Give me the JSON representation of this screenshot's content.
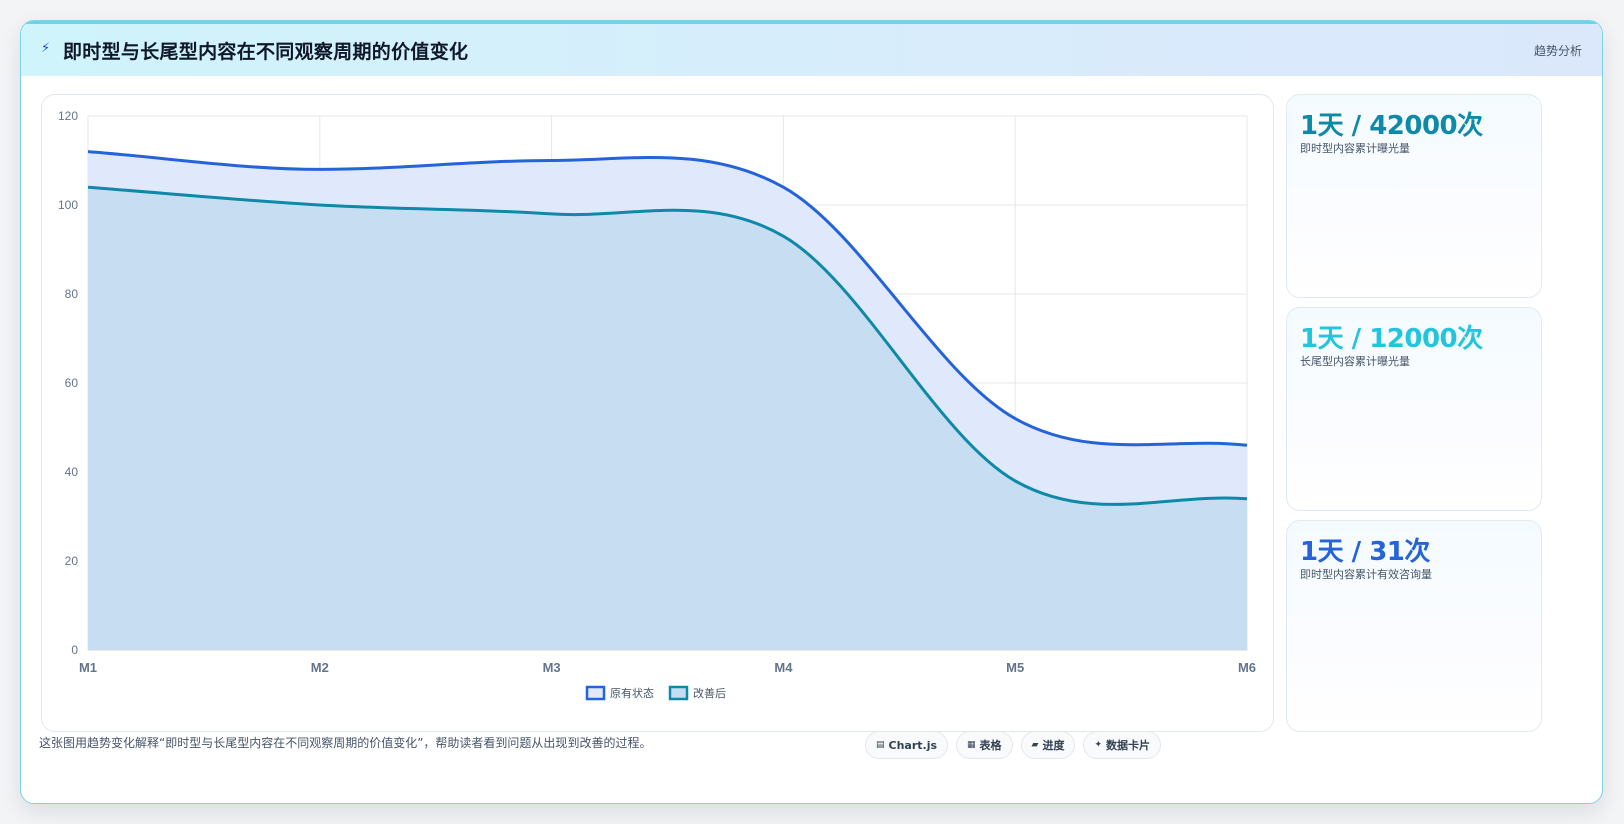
{
  "header": {
    "icon": "lightning-icon",
    "title": "即时型与长尾型内容在不同观察周期的价值变化",
    "tag": "趋势分析"
  },
  "chart_data": {
    "type": "area",
    "categories": [
      "M1",
      "M2",
      "M3",
      "M4",
      "M5",
      "M6"
    ],
    "ylim": [
      0,
      120
    ],
    "yticks": [
      "0",
      "20",
      "40",
      "60",
      "80",
      "100",
      "120"
    ],
    "grid": true,
    "legend_position": "bottom",
    "series": [
      {
        "name": "原有状态",
        "values": [
          112,
          108,
          110,
          104,
          52,
          46
        ],
        "color": "#2563d9",
        "fill": "#e0e9fb"
      },
      {
        "name": "改善后",
        "values": [
          104,
          100,
          98,
          93,
          38,
          34
        ],
        "color": "#0e89a8",
        "fill": "#c5dcf1"
      }
    ]
  },
  "stats": [
    {
      "value": "1天 / 42000次",
      "label": "即时型内容累计曝光量",
      "color": "#0e89a8"
    },
    {
      "value": "1天 / 12000次",
      "label": "长尾型内容累计曝光量",
      "color": "#22c5dc"
    },
    {
      "value": "1天 / 31次",
      "label": "即时型内容累计有效咨询量",
      "color": "#2563d9"
    }
  ],
  "footer": {
    "description": "这张图用趋势变化解释“即时型与长尾型内容在不同观察周期的价值变化”，帮助读者看到问题从出现到改善的过程。",
    "chips": [
      {
        "icon": "chart-icon",
        "glyph": "▤",
        "label": "Chart.js"
      },
      {
        "icon": "table-icon",
        "glyph": "▦",
        "label": "表格"
      },
      {
        "icon": "progress-icon",
        "glyph": "▰",
        "label": "进度"
      },
      {
        "icon": "sparkle-icon",
        "glyph": "✦",
        "label": "数据卡片"
      }
    ]
  }
}
